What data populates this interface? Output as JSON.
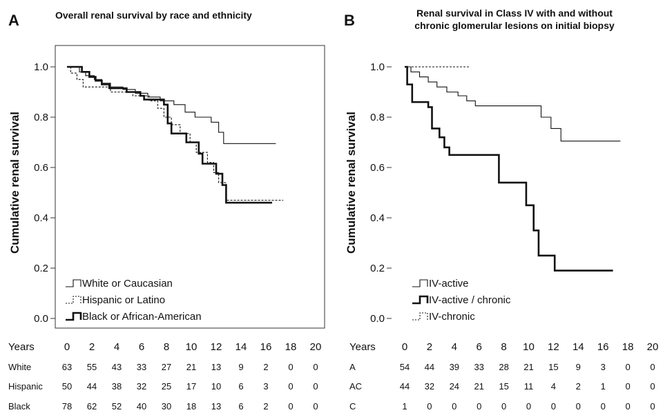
{
  "chart_data": [
    {
      "type": "line",
      "panel_label": "A",
      "title": "Overall  renal survival by race and ethnicity",
      "title_lines": [
        "Overall  renal survival by race and ethnicity"
      ],
      "ylabel": "Cumulative  renal  survival",
      "ylim": [
        0,
        1
      ],
      "yticks": [
        0.0,
        0.2,
        0.4,
        0.6,
        0.8,
        1.0
      ],
      "ytick_labels": [
        "0.0",
        "0.2",
        "0.4",
        "0.6",
        "0.8",
        "1.0"
      ],
      "xlim": [
        0,
        20
      ],
      "xticks": [
        0,
        2,
        4,
        6,
        8,
        10,
        12,
        14,
        16,
        18,
        20
      ],
      "grid": false,
      "legend_position": "bottom-left",
      "series": [
        {
          "name": "White or Caucasian",
          "style": "thin",
          "points": [
            [
              0,
              1.0
            ],
            [
              1.0,
              0.98
            ],
            [
              1.5,
              0.965
            ],
            [
              2.2,
              0.95
            ],
            [
              2.8,
              0.935
            ],
            [
              3.5,
              0.92
            ],
            [
              4.5,
              0.91
            ],
            [
              5.5,
              0.895
            ],
            [
              6.5,
              0.88
            ],
            [
              7.5,
              0.865
            ],
            [
              8.6,
              0.85
            ],
            [
              9.5,
              0.82
            ],
            [
              10.3,
              0.8
            ],
            [
              11.6,
              0.78
            ],
            [
              12.2,
              0.74
            ],
            [
              12.6,
              0.695
            ],
            [
              16.8,
              0.695
            ]
          ]
        },
        {
          "name": "Hispanic or Latino",
          "style": "dashed",
          "points": [
            [
              0,
              1.0
            ],
            [
              0.3,
              0.975
            ],
            [
              0.8,
              0.95
            ],
            [
              1.3,
              0.92
            ],
            [
              3.5,
              0.9
            ],
            [
              5.3,
              0.885
            ],
            [
              6.6,
              0.865
            ],
            [
              7.3,
              0.835
            ],
            [
              7.8,
              0.8
            ],
            [
              8.4,
              0.77
            ],
            [
              9.1,
              0.735
            ],
            [
              9.9,
              0.7
            ],
            [
              10.4,
              0.66
            ],
            [
              11.3,
              0.62
            ],
            [
              11.8,
              0.58
            ],
            [
              12.2,
              0.54
            ],
            [
              12.8,
              0.47
            ],
            [
              17.4,
              0.47
            ]
          ]
        },
        {
          "name": "Black or African-American",
          "style": "thick",
          "points": [
            [
              0,
              1.0
            ],
            [
              1.2,
              0.98
            ],
            [
              1.8,
              0.96
            ],
            [
              2.3,
              0.945
            ],
            [
              2.8,
              0.93
            ],
            [
              3.4,
              0.915
            ],
            [
              4.8,
              0.9
            ],
            [
              5.9,
              0.885
            ],
            [
              6.2,
              0.87
            ],
            [
              7.8,
              0.85
            ],
            [
              8.1,
              0.775
            ],
            [
              8.4,
              0.735
            ],
            [
              9.6,
              0.7
            ],
            [
              10.6,
              0.655
            ],
            [
              10.9,
              0.615
            ],
            [
              12.0,
              0.575
            ],
            [
              12.5,
              0.53
            ],
            [
              12.8,
              0.46
            ],
            [
              16.5,
              0.46
            ]
          ]
        }
      ],
      "risk_table": {
        "header": "Years",
        "rows": [
          {
            "label": "White",
            "values": [
              "63",
              "55",
              "43",
              "33",
              "27",
              "21",
              "13",
              "9",
              "2",
              "0",
              "0"
            ]
          },
          {
            "label": "Hispanic",
            "values": [
              "50",
              "44",
              "38",
              "32",
              "25",
              "17",
              "10",
              "6",
              "3",
              "0",
              "0"
            ]
          },
          {
            "label": "Black",
            "values": [
              "78",
              "62",
              "52",
              "40",
              "30",
              "18",
              "13",
              "6",
              "2",
              "0",
              "0"
            ]
          }
        ]
      }
    },
    {
      "type": "line",
      "panel_label": "B",
      "title": "Renal survival in Class IV with and without chronic glomerular lesions on initial biopsy",
      "title_lines": [
        "Renal survival in Class IV with and without",
        "chronic glomerular lesions on initial biopsy"
      ],
      "ylabel": "Cumulative  renal  survival",
      "ylim": [
        0,
        1
      ],
      "yticks": [
        0.0,
        0.2,
        0.4,
        0.6,
        0.8,
        1.0
      ],
      "ytick_labels": [
        "0.0",
        "0.2",
        "0.4",
        "0.6",
        "0.8",
        "1.0"
      ],
      "xlim": [
        0,
        20
      ],
      "xticks": [
        0,
        2,
        4,
        6,
        8,
        10,
        12,
        14,
        16,
        18,
        20
      ],
      "grid": false,
      "legend_position": "bottom-left",
      "series": [
        {
          "name": "IV-active",
          "style": "thin",
          "points": [
            [
              0,
              1.0
            ],
            [
              0.5,
              0.98
            ],
            [
              1.2,
              0.96
            ],
            [
              1.9,
              0.94
            ],
            [
              2.6,
              0.92
            ],
            [
              3.4,
              0.9
            ],
            [
              4.3,
              0.885
            ],
            [
              5.0,
              0.865
            ],
            [
              5.7,
              0.845
            ],
            [
              11.0,
              0.8
            ],
            [
              11.8,
              0.755
            ],
            [
              12.6,
              0.705
            ],
            [
              17.4,
              0.705
            ]
          ]
        },
        {
          "name": "IV-active / chronic",
          "style": "thick",
          "points": [
            [
              0,
              1.0
            ],
            [
              0.2,
              0.93
            ],
            [
              0.6,
              0.86
            ],
            [
              1.9,
              0.84
            ],
            [
              2.2,
              0.755
            ],
            [
              2.8,
              0.72
            ],
            [
              3.2,
              0.68
            ],
            [
              3.6,
              0.65
            ],
            [
              7.6,
              0.54
            ],
            [
              9.8,
              0.45
            ],
            [
              10.4,
              0.35
            ],
            [
              10.8,
              0.25
            ],
            [
              12.1,
              0.19
            ],
            [
              16.8,
              0.19
            ]
          ]
        },
        {
          "name": "IV-chronic",
          "style": "dashed",
          "points": [
            [
              0,
              1.0
            ],
            [
              5.3,
              1.0
            ]
          ]
        }
      ],
      "risk_table": {
        "header": "Years",
        "rows": [
          {
            "label": "A",
            "values": [
              "54",
              "44",
              "39",
              "33",
              "28",
              "21",
              "15",
              "9",
              "3",
              "0",
              "0"
            ]
          },
          {
            "label": "AC",
            "values": [
              "44",
              "32",
              "24",
              "21",
              "15",
              "11",
              "4",
              "2",
              "1",
              "0",
              "0"
            ]
          },
          {
            "label": "C",
            "values": [
              "1",
              "0",
              "0",
              "0",
              "0",
              "0",
              "0",
              "0",
              "0",
              "0",
              "0"
            ]
          }
        ]
      }
    }
  ]
}
